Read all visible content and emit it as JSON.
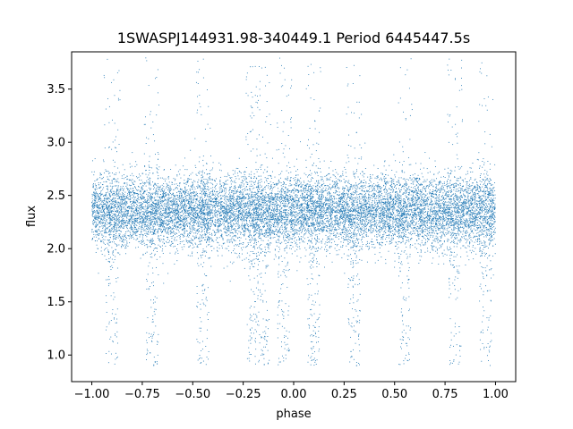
{
  "chart_data": {
    "type": "scatter",
    "title": "1SWASPJ144931.98-340449.1 Period 6445447.5s",
    "xlabel": "phase",
    "ylabel": "flux",
    "xlim": [
      -1.1,
      1.1
    ],
    "ylim": [
      0.75,
      3.85
    ],
    "xticks": [
      -1.0,
      -0.75,
      -0.5,
      -0.25,
      0.0,
      0.25,
      0.5,
      0.75,
      1.0
    ],
    "xtick_labels": [
      "−1.00",
      "−0.75",
      "−0.50",
      "−0.25",
      "0.00",
      "0.25",
      "0.50",
      "0.75",
      "1.00"
    ],
    "yticks": [
      1.0,
      1.5,
      2.0,
      2.5,
      3.0,
      3.5
    ],
    "ytick_labels": [
      "1.0",
      "1.5",
      "2.0",
      "2.5",
      "3.0",
      "3.5"
    ],
    "grid": false,
    "marker_color": "#1f77b4",
    "series": [
      {
        "baseline_flux": 2.35,
        "baseline_spread": 0.17,
        "phase_range": [
          -1.0,
          1.0
        ],
        "dip_phases": [
          -0.9,
          -0.7,
          -0.45,
          -0.2,
          -0.15,
          -0.05,
          0.1,
          0.3,
          0.55,
          0.8,
          0.95
        ],
        "dip_min_flux": 0.9,
        "outlier_max_flux": 3.8
      }
    ]
  }
}
